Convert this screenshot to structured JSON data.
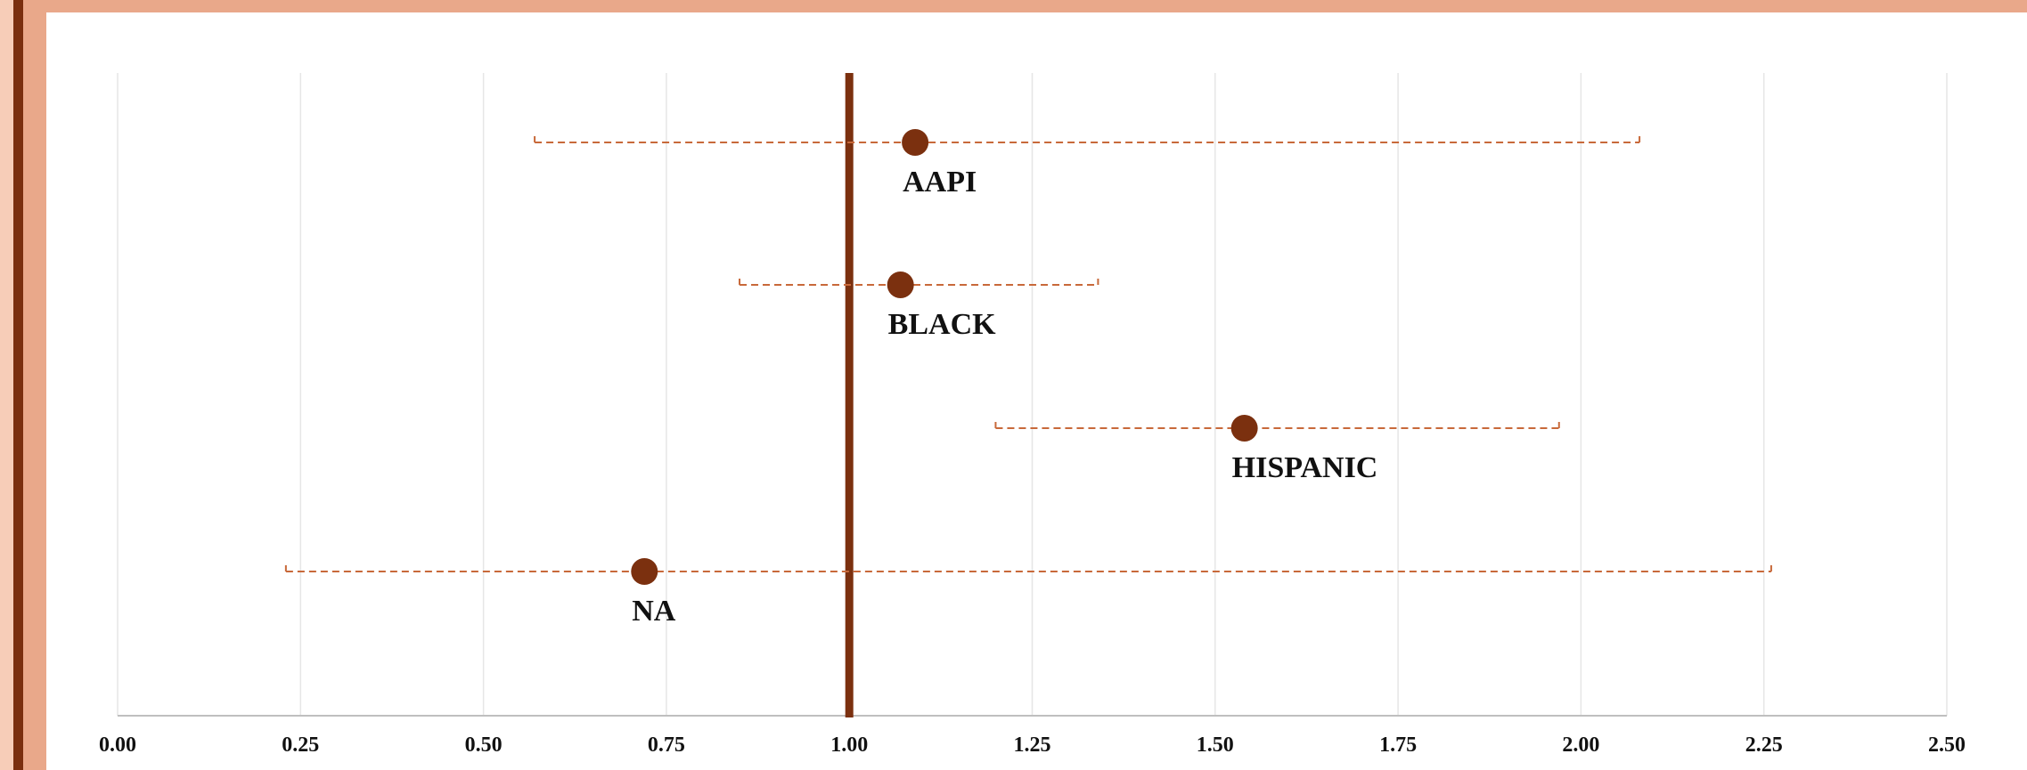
{
  "chart_data": {
    "type": "scatter",
    "title": "",
    "xlabel": "",
    "ylabel": "",
    "xlim": [
      0,
      2.5
    ],
    "x_ticks": [
      "0.00",
      "0.25",
      "0.50",
      "0.75",
      "1.00",
      "1.25",
      "1.50",
      "1.75",
      "2.00",
      "2.25",
      "2.50"
    ],
    "reference_line_x": 1.0,
    "grid": true,
    "colors": {
      "point": "#7b300f",
      "error_bar": "#c8693a",
      "reference_line": "#7b300f",
      "grid": "#e6e6e6",
      "axis": "#bfbfbf"
    },
    "points": [
      {
        "label": "AAPI",
        "x": 1.09,
        "ci_low": 0.57,
        "ci_high": 2.08
      },
      {
        "label": "BLACK",
        "x": 1.07,
        "ci_low": 0.85,
        "ci_high": 1.34
      },
      {
        "label": "HISPANIC",
        "x": 1.54,
        "ci_low": 1.2,
        "ci_high": 1.97
      },
      {
        "label": "NA",
        "x": 0.72,
        "ci_low": 0.23,
        "ci_high": 2.26
      }
    ]
  }
}
